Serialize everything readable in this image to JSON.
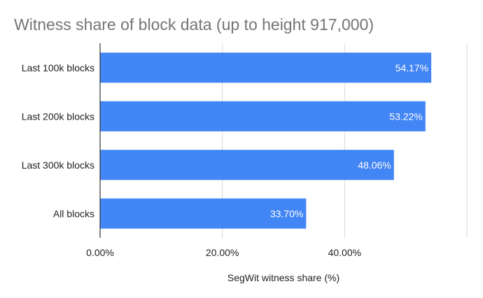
{
  "chart_data": {
    "type": "bar",
    "orientation": "horizontal",
    "title": "Witness share of block data (up to height 917,000)",
    "xlabel": "SegWit witness share (%)",
    "ylabel": "",
    "categories": [
      "Last 100k blocks",
      "Last 200k blocks",
      "Last 300k blocks",
      "All blocks"
    ],
    "series": [
      {
        "values": [
          54.17,
          53.22,
          48.06,
          33.7
        ],
        "data_labels": [
          "54.17%",
          "53.22%",
          "48.06%",
          "33.70%"
        ],
        "color": "#4285f4"
      }
    ],
    "xlim": [
      0,
      60
    ],
    "xticks": [
      0,
      20,
      40,
      60
    ],
    "xtick_labels": [
      "0.00%",
      "20.00%",
      "40.00%",
      ""
    ],
    "grid": true,
    "legend": "none"
  }
}
